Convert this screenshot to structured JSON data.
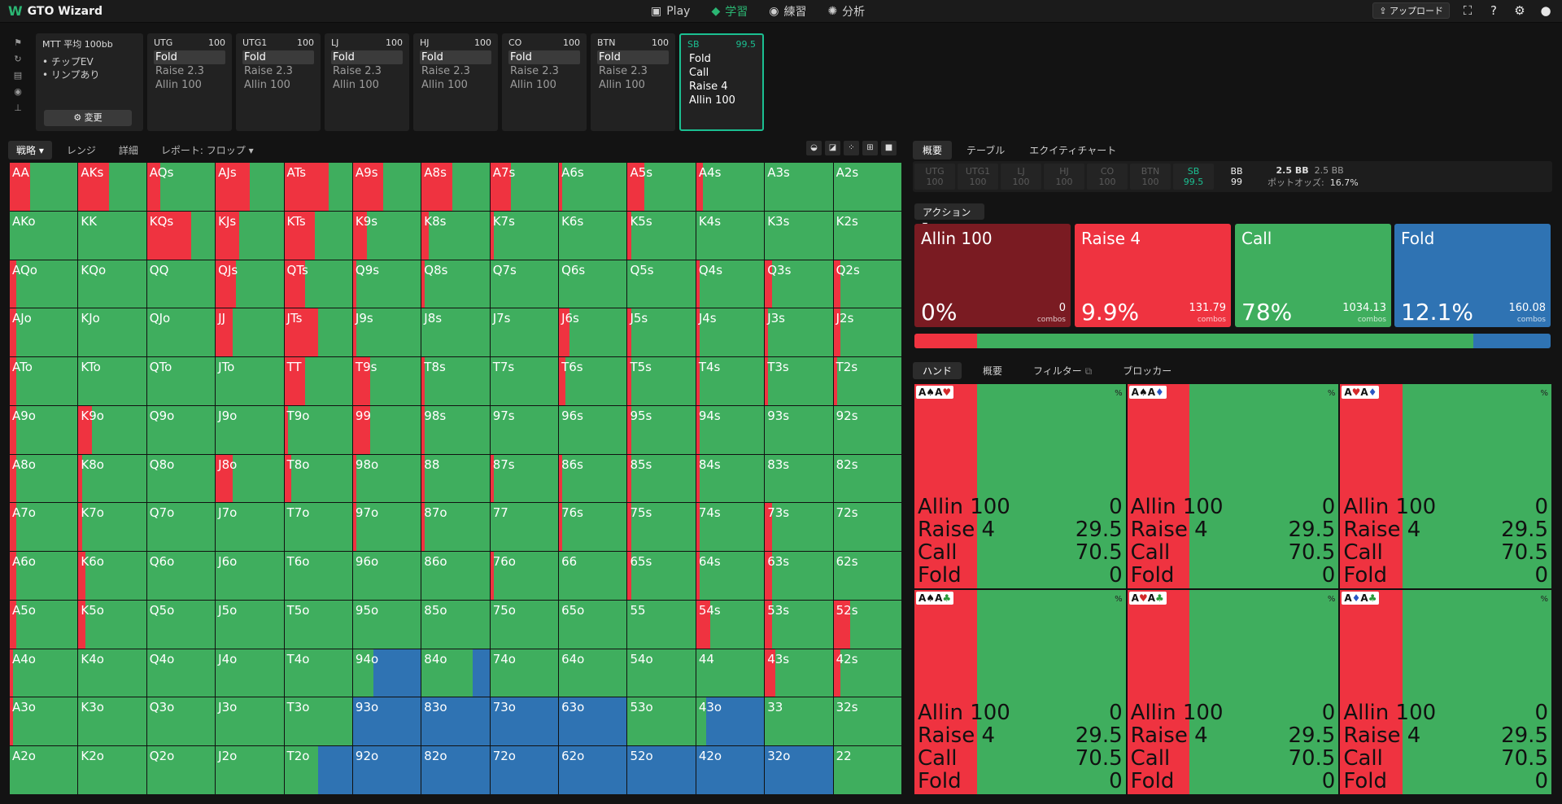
{
  "app": {
    "title": "GTO Wizard"
  },
  "nav": [
    {
      "label": "Play",
      "icon": "play-icon"
    },
    {
      "label": "学習",
      "icon": "study-icon"
    },
    {
      "label": "練習",
      "icon": "gamepad-icon"
    },
    {
      "label": "分析",
      "icon": "bulb-icon"
    }
  ],
  "top_right": {
    "upload_label": "アップロード"
  },
  "game": {
    "title": "MTT 平均 100bb",
    "bullets": [
      "チップEV",
      "リンプあり"
    ],
    "change_label": "変更"
  },
  "positions": [
    {
      "name": "UTG",
      "stack": "100",
      "actions": [
        "Fold",
        "Raise 2.3",
        "Allin 100"
      ]
    },
    {
      "name": "UTG1",
      "stack": "100",
      "actions": [
        "Fold",
        "Raise 2.3",
        "Allin 100"
      ]
    },
    {
      "name": "LJ",
      "stack": "100",
      "actions": [
        "Fold",
        "Raise 2.3",
        "Allin 100"
      ]
    },
    {
      "name": "HJ",
      "stack": "100",
      "actions": [
        "Fold",
        "Raise 2.3",
        "Allin 100"
      ]
    },
    {
      "name": "CO",
      "stack": "100",
      "actions": [
        "Fold",
        "Raise 2.3",
        "Allin 100"
      ]
    },
    {
      "name": "BTN",
      "stack": "100",
      "actions": [
        "Fold",
        "Raise 2.3",
        "Allin 100"
      ]
    },
    {
      "name": "SB",
      "stack": "99.5",
      "actions": [
        "Fold",
        "Call",
        "Raise 4",
        "Allin 100"
      ]
    }
  ],
  "left_tabs": [
    "戦略",
    "レンジ",
    "詳細",
    "レポート: フロップ"
  ],
  "right_tabs": [
    "概要",
    "テーブル",
    "エクイティチャート"
  ],
  "pos_strip": [
    {
      "name": "UTG",
      "stack": "100"
    },
    {
      "name": "UTG1",
      "stack": "100"
    },
    {
      "name": "LJ",
      "stack": "100"
    },
    {
      "name": "HJ",
      "stack": "100"
    },
    {
      "name": "CO",
      "stack": "100"
    },
    {
      "name": "BTN",
      "stack": "100"
    },
    {
      "name": "SB",
      "stack": "99.5"
    },
    {
      "name": "BB",
      "stack": "99"
    }
  ],
  "pot": {
    "pot": "2.5 BB",
    "pot2": "2.5 BB",
    "odds_label": "ポットオッズ:",
    "odds": "16.7%"
  },
  "action_dropdown": "アクション",
  "actions": [
    {
      "name": "Allin 100",
      "pct": "0%",
      "combos": "0",
      "combos_label": "combos",
      "color": "#7a1b22",
      "freq": 0.0
    },
    {
      "name": "Raise 4",
      "pct": "9.9%",
      "combos": "131.79",
      "combos_label": "combos",
      "color": "#ef3340",
      "freq": 0.099
    },
    {
      "name": "Call",
      "pct": "78%",
      "combos": "1034.13",
      "combos_label": "combos",
      "color": "#3fae5e",
      "freq": 0.78
    },
    {
      "name": "Fold",
      "pct": "12.1%",
      "combos": "160.08",
      "combos_label": "combos",
      "color": "#2f73b3",
      "freq": 0.121
    }
  ],
  "hand_tabs": [
    "ハンド",
    "概要",
    "フィルター",
    "ブロッカー"
  ],
  "combo_cards": [
    {
      "cards": "A♠A♥",
      "pct": "%",
      "rows": [
        [
          "Allin 100",
          "0"
        ],
        [
          "Raise 4",
          "29.5"
        ],
        [
          "Call",
          "70.5"
        ],
        [
          "Fold",
          "0"
        ]
      ],
      "raise": 0.295
    },
    {
      "cards": "A♠A♦",
      "pct": "%",
      "rows": [
        [
          "Allin 100",
          "0"
        ],
        [
          "Raise 4",
          "29.5"
        ],
        [
          "Call",
          "70.5"
        ],
        [
          "Fold",
          "0"
        ]
      ],
      "raise": 0.295
    },
    {
      "cards": "A♥A♦",
      "pct": "%",
      "rows": [
        [
          "Allin 100",
          "0"
        ],
        [
          "Raise 4",
          "29.5"
        ],
        [
          "Call",
          "70.5"
        ],
        [
          "Fold",
          "0"
        ]
      ],
      "raise": 0.295
    },
    {
      "cards": "A♠A♣",
      "pct": "%",
      "rows": [
        [
          "Allin 100",
          "0"
        ],
        [
          "Raise 4",
          "29.5"
        ],
        [
          "Call",
          "70.5"
        ],
        [
          "Fold",
          "0"
        ]
      ],
      "raise": 0.295
    },
    {
      "cards": "A♥A♣",
      "pct": "%",
      "rows": [
        [
          "Allin 100",
          "0"
        ],
        [
          "Raise 4",
          "29.5"
        ],
        [
          "Call",
          "70.5"
        ],
        [
          "Fold",
          "0"
        ]
      ],
      "raise": 0.295
    },
    {
      "cards": "A♦A♣",
      "pct": "%",
      "rows": [
        [
          "Allin 100",
          "0"
        ],
        [
          "Raise 4",
          "29.5"
        ],
        [
          "Call",
          "70.5"
        ],
        [
          "Fold",
          "0"
        ]
      ],
      "raise": 0.295
    }
  ],
  "grid": [
    [
      "AA",
      "AKs",
      "AQs",
      "AJs",
      "ATs",
      "A9s",
      "A8s",
      "A7s",
      "A6s",
      "A5s",
      "A4s",
      "A3s",
      "A2s"
    ],
    [
      "AKo",
      "KK",
      "KQs",
      "KJs",
      "KTs",
      "K9s",
      "K8s",
      "K7s",
      "K6s",
      "K5s",
      "K4s",
      "K3s",
      "K2s"
    ],
    [
      "AQo",
      "KQo",
      "QQ",
      "QJs",
      "QTs",
      "Q9s",
      "Q8s",
      "Q7s",
      "Q6s",
      "Q5s",
      "Q4s",
      "Q3s",
      "Q2s"
    ],
    [
      "AJo",
      "KJo",
      "QJo",
      "JJ",
      "JTs",
      "J9s",
      "J8s",
      "J7s",
      "J6s",
      "J5s",
      "J4s",
      "J3s",
      "J2s"
    ],
    [
      "ATo",
      "KTo",
      "QTo",
      "JTo",
      "TT",
      "T9s",
      "T8s",
      "T7s",
      "T6s",
      "T5s",
      "T4s",
      "T3s",
      "T2s"
    ],
    [
      "A9o",
      "K9o",
      "Q9o",
      "J9o",
      "T9o",
      "99",
      "98s",
      "97s",
      "96s",
      "95s",
      "94s",
      "93s",
      "92s"
    ],
    [
      "A8o",
      "K8o",
      "Q8o",
      "J8o",
      "T8o",
      "98o",
      "88",
      "87s",
      "86s",
      "85s",
      "84s",
      "83s",
      "82s"
    ],
    [
      "A7o",
      "K7o",
      "Q7o",
      "J7o",
      "T7o",
      "97o",
      "87o",
      "77",
      "76s",
      "75s",
      "74s",
      "73s",
      "72s"
    ],
    [
      "A6o",
      "K6o",
      "Q6o",
      "J6o",
      "T6o",
      "96o",
      "86o",
      "76o",
      "66",
      "65s",
      "64s",
      "63s",
      "62s"
    ],
    [
      "A5o",
      "K5o",
      "Q5o",
      "J5o",
      "T5o",
      "95o",
      "85o",
      "75o",
      "65o",
      "55",
      "54s",
      "53s",
      "52s"
    ],
    [
      "A4o",
      "K4o",
      "Q4o",
      "J4o",
      "T4o",
      "94o",
      "84o",
      "74o",
      "64o",
      "54o",
      "44",
      "43s",
      "42s"
    ],
    [
      "A3o",
      "K3o",
      "Q3o",
      "J3o",
      "T3o",
      "93o",
      "83o",
      "73o",
      "63o",
      "53o",
      "43o",
      "33",
      "32s"
    ],
    [
      "A2o",
      "K2o",
      "Q2o",
      "J2o",
      "T2o",
      "92o",
      "82o",
      "72o",
      "62o",
      "52o",
      "42o",
      "32o",
      "22"
    ]
  ],
  "raise_freq": [
    [
      0.3,
      0.45,
      0.2,
      0.5,
      0.65,
      0.45,
      0.45,
      0.3,
      0.05,
      0.25,
      0.1,
      0.0,
      0.0
    ],
    [
      0.0,
      0.0,
      0.65,
      0.35,
      0.45,
      0.2,
      0.1,
      0.05,
      0.0,
      0.05,
      0.0,
      0.0,
      0.0
    ],
    [
      0.1,
      0.0,
      0.0,
      0.3,
      0.3,
      0.05,
      0.05,
      0.0,
      0.0,
      0.0,
      0.05,
      0.1,
      0.1
    ],
    [
      0.1,
      0.0,
      0.0,
      0.25,
      0.5,
      0.05,
      0.0,
      0.0,
      0.15,
      0.05,
      0.05,
      0.05,
      0.1
    ],
    [
      0.1,
      0.0,
      0.0,
      0.0,
      0.3,
      0.25,
      0.05,
      0.0,
      0.1,
      0.05,
      0.05,
      0.05,
      0.05
    ],
    [
      0.1,
      0.2,
      0.0,
      0.0,
      0.05,
      0.25,
      0.05,
      0.0,
      0.0,
      0.05,
      0.05,
      0.0,
      0.0
    ],
    [
      0.1,
      0.05,
      0.0,
      0.25,
      0.1,
      0.05,
      0.05,
      0.05,
      0.05,
      0.05,
      0.05,
      0.0,
      0.0
    ],
    [
      0.1,
      0.05,
      0.0,
      0.0,
      0.0,
      0.05,
      0.05,
      0.0,
      0.05,
      0.05,
      0.05,
      0.1,
      0.0
    ],
    [
      0.1,
      0.1,
      0.0,
      0.0,
      0.0,
      0.0,
      0.0,
      0.05,
      0.0,
      0.05,
      0.05,
      0.1,
      0.0
    ],
    [
      0.1,
      0.1,
      0.0,
      0.0,
      0.0,
      0.0,
      0.0,
      0.0,
      0.0,
      0.0,
      0.2,
      0.1,
      0.25
    ],
    [
      0.05,
      0.0,
      0.0,
      0.0,
      0.0,
      0.0,
      0.0,
      0.0,
      0.0,
      0.0,
      0.0,
      0.15,
      0.1
    ],
    [
      0.05,
      0.0,
      0.0,
      0.0,
      0.0,
      0.0,
      0.0,
      0.0,
      0.0,
      0.0,
      0.0,
      0.0,
      0.0
    ],
    [
      0.0,
      0.0,
      0.0,
      0.0,
      0.0,
      0.0,
      0.0,
      0.0,
      0.0,
      0.0,
      0.0,
      0.0,
      0.0
    ]
  ],
  "fold_freq": [
    [
      0,
      0,
      0,
      0,
      0,
      0,
      0,
      0,
      0,
      0,
      0,
      0,
      0
    ],
    [
      0,
      0,
      0,
      0,
      0,
      0,
      0,
      0,
      0,
      0,
      0,
      0,
      0
    ],
    [
      0,
      0,
      0,
      0,
      0,
      0,
      0,
      0,
      0,
      0,
      0,
      0,
      0
    ],
    [
      0,
      0,
      0,
      0,
      0,
      0,
      0,
      0,
      0,
      0,
      0,
      0,
      0
    ],
    [
      0,
      0,
      0,
      0,
      0,
      0,
      0,
      0,
      0,
      0,
      0,
      0,
      0
    ],
    [
      0,
      0,
      0,
      0,
      0,
      0,
      0,
      0,
      0,
      0,
      0,
      0,
      0
    ],
    [
      0,
      0,
      0,
      0,
      0,
      0,
      0,
      0,
      0,
      0,
      0,
      0,
      0
    ],
    [
      0,
      0,
      0,
      0,
      0,
      0,
      0,
      0,
      0,
      0,
      0,
      0,
      0
    ],
    [
      0,
      0,
      0,
      0,
      0,
      0,
      0,
      0,
      0,
      0,
      0,
      0,
      0
    ],
    [
      0,
      0,
      0,
      0,
      0,
      0,
      0,
      0,
      0,
      0,
      0,
      0,
      0
    ],
    [
      0,
      0,
      0,
      0,
      0,
      0.7,
      0.25,
      0,
      0,
      0,
      0,
      0,
      0
    ],
    [
      0,
      0,
      0,
      0,
      0,
      1.0,
      1.0,
      1.0,
      1.0,
      0,
      0.85,
      0,
      0
    ],
    [
      0,
      0,
      0,
      0,
      0.5,
      1.0,
      1.0,
      1.0,
      1.0,
      1.0,
      1.0,
      1.0,
      0
    ]
  ]
}
